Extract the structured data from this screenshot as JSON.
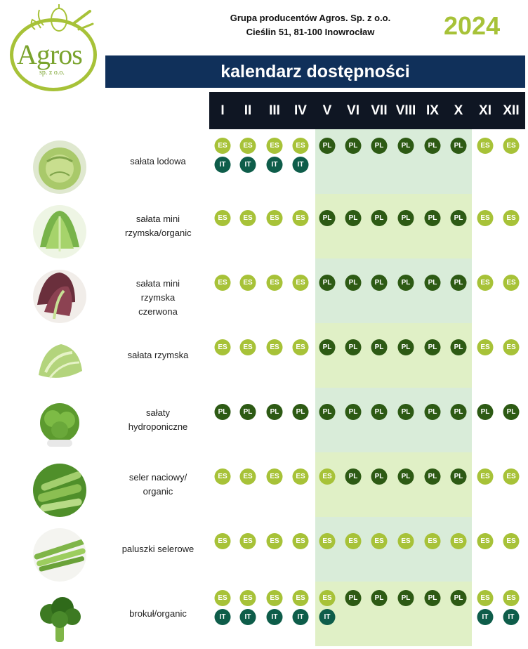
{
  "header": {
    "logo_text": "Agros",
    "logo_sub": "sp. z o.o.",
    "company_line1": "Grupa producentów Agros. Sp. z o.o.",
    "company_line2": "Cieślin 51, 81-100 Inowrocław",
    "year": "2024",
    "banner": "kalendarz dostępności"
  },
  "months": [
    "I",
    "II",
    "III",
    "IV",
    "V",
    "VI",
    "VII",
    "VIII",
    "IX",
    "X",
    "XI",
    "XII"
  ],
  "colors": {
    "ES": "#a7c238",
    "PL": "#2d5a14",
    "IT": "#0e5d4a",
    "banner": "#10305a",
    "months_bar": "#0f1623",
    "season_light_a": "#d9ecd9",
    "season_light_b": "#e0f0c6"
  },
  "products": [
    {
      "name": "sałata lodowa",
      "photo": "iceberg-lettuce",
      "main": [
        "ES",
        "ES",
        "ES",
        "ES",
        "PL",
        "PL",
        "PL",
        "PL",
        "PL",
        "PL",
        "ES",
        "ES"
      ],
      "extra": [
        "IT",
        "IT",
        "IT",
        "IT",
        "",
        "",
        "",
        "",
        "",
        "",
        "",
        ""
      ]
    },
    {
      "name": "sałata mini rzymska/organic",
      "photo": "mini-romaine",
      "main": [
        "ES",
        "ES",
        "ES",
        "ES",
        "PL",
        "PL",
        "PL",
        "PL",
        "PL",
        "PL",
        "ES",
        "ES"
      ],
      "extra": []
    },
    {
      "name": "sałata mini rzymska czerwona",
      "photo": "red-mini-romaine",
      "main": [
        "ES",
        "ES",
        "ES",
        "ES",
        "PL",
        "PL",
        "PL",
        "PL",
        "PL",
        "PL",
        "ES",
        "ES"
      ],
      "extra": []
    },
    {
      "name": "sałata rzymska",
      "photo": "romaine",
      "main": [
        "ES",
        "ES",
        "ES",
        "ES",
        "PL",
        "PL",
        "PL",
        "PL",
        "PL",
        "PL",
        "ES",
        "ES"
      ],
      "extra": []
    },
    {
      "name": "sałaty hydroponiczne",
      "photo": "hydroponic-lettuce",
      "main": [
        "PL",
        "PL",
        "PL",
        "PL",
        "PL",
        "PL",
        "PL",
        "PL",
        "PL",
        "PL",
        "PL",
        "PL"
      ],
      "extra": []
    },
    {
      "name": "seler naciowy/ organic",
      "photo": "celery",
      "main": [
        "ES",
        "ES",
        "ES",
        "ES",
        "ES",
        "PL",
        "PL",
        "PL",
        "PL",
        "PL",
        "ES",
        "ES"
      ],
      "extra": []
    },
    {
      "name": "paluszki selerowe",
      "photo": "celery-sticks",
      "main": [
        "ES",
        "ES",
        "ES",
        "ES",
        "ES",
        "ES",
        "ES",
        "ES",
        "ES",
        "ES",
        "ES",
        "ES"
      ],
      "extra": []
    },
    {
      "name": "brokuł/organic",
      "photo": "broccoli",
      "main": [
        "ES",
        "ES",
        "ES",
        "ES",
        "ES",
        "PL",
        "PL",
        "PL",
        "PL",
        "PL",
        "ES",
        "ES"
      ],
      "extra": [
        "IT",
        "IT",
        "IT",
        "IT",
        "IT",
        "",
        "",
        "",
        "",
        "",
        "IT",
        "IT"
      ]
    }
  ]
}
